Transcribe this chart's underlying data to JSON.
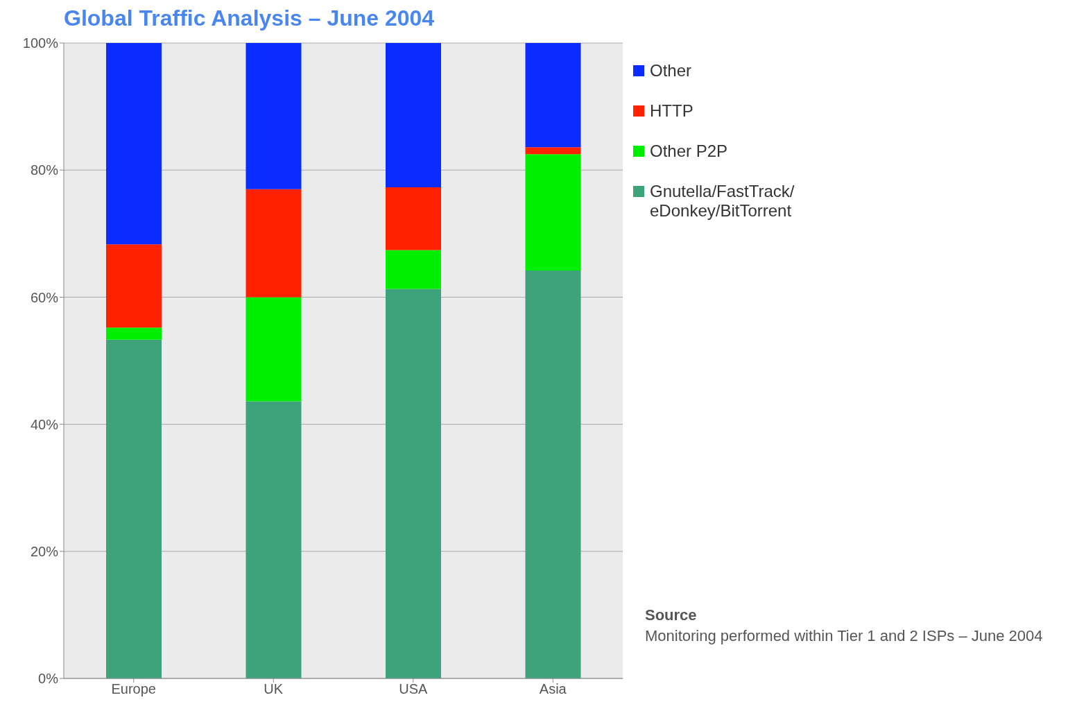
{
  "chart_data": {
    "type": "bar",
    "title": "Global Traffic Analysis – June 2004",
    "categories": [
      "Europe",
      "UK",
      "USA",
      "Asia"
    ],
    "stacked": true,
    "series": [
      {
        "name": "Gnutella/FastTrack/ eDonkey/BitTorrent",
        "color": "#3ea37a",
        "values": [
          53.3,
          43.6,
          61.3,
          64.2
        ]
      },
      {
        "name": "Other P2P",
        "color": "#00ee00",
        "values": [
          1.9,
          16.4,
          6.1,
          18.3
        ]
      },
      {
        "name": "HTTP",
        "color": "#ff2200",
        "values": [
          13.1,
          17,
          9.9,
          1.1
        ]
      },
      {
        "name": "Other",
        "color": "#0a2cff",
        "values": [
          31.7,
          23,
          22.7,
          16.4
        ]
      }
    ],
    "ylim": [
      0,
      100
    ],
    "yticks": [
      {
        "value": 0,
        "label": "0%"
      },
      {
        "value": 20,
        "label": "20%"
      },
      {
        "value": 40,
        "label": "40%"
      },
      {
        "value": 60,
        "label": "60%"
      },
      {
        "value": 80,
        "label": "80%"
      },
      {
        "value": 100,
        "label": "100%"
      }
    ],
    "grid": "y",
    "legend": "top right",
    "annotations": [
      "Source",
      "Monitoring performed within Tier 1 and 2 ISPs – June 2004"
    ]
  }
}
